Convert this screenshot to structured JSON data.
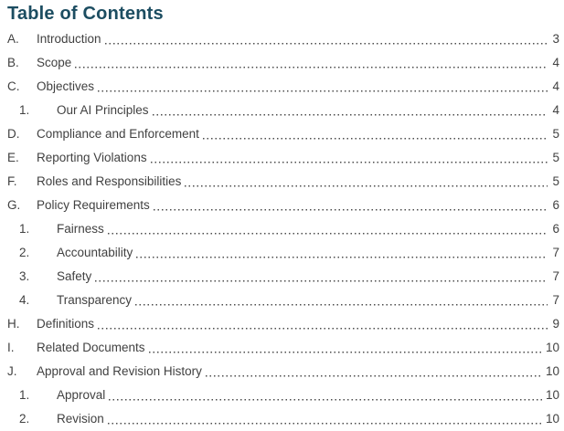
{
  "page": {
    "title": "Table of Contents",
    "title_color": "#1c4d61",
    "text_color": "#414141",
    "leader_dot_color": "#4d4d4d"
  },
  "toc": {
    "entries": [
      {
        "label": "A.",
        "title": "Introduction",
        "page": "3",
        "level": 1
      },
      {
        "label": "B.",
        "title": "Scope",
        "page": "4",
        "level": 1
      },
      {
        "label": "C.",
        "title": "Objectives",
        "page": "4",
        "level": 1
      },
      {
        "label": "1.",
        "title": "Our AI Principles",
        "page": "4",
        "level": 2
      },
      {
        "label": "D.",
        "title": "Compliance and Enforcement",
        "page": "5",
        "level": 1
      },
      {
        "label": "E.",
        "title": "Reporting Violations",
        "page": "5",
        "level": 1
      },
      {
        "label": "F.",
        "title": "Roles and Responsibilities",
        "page": "5",
        "level": 1
      },
      {
        "label": "G.",
        "title": "Policy Requirements",
        "page": "6",
        "level": 1
      },
      {
        "label": "1.",
        "title": "Fairness",
        "page": "6",
        "level": 2
      },
      {
        "label": "2.",
        "title": "Accountability",
        "page": "7",
        "level": 2
      },
      {
        "label": "3.",
        "title": "Safety",
        "page": "7",
        "level": 2
      },
      {
        "label": "4.",
        "title": "Transparency",
        "page": "7",
        "level": 2
      },
      {
        "label": "H.",
        "title": "Definitions",
        "page": "9",
        "level": 1
      },
      {
        "label": "I.",
        "title": "Related Documents",
        "page": "10",
        "level": 1
      },
      {
        "label": "J.",
        "title": "Approval and Revision History",
        "page": "10",
        "level": 1
      },
      {
        "label": "1.",
        "title": "Approval",
        "page": "10",
        "level": 2
      },
      {
        "label": "2.",
        "title": "Revision",
        "page": "10",
        "level": 2
      }
    ]
  }
}
